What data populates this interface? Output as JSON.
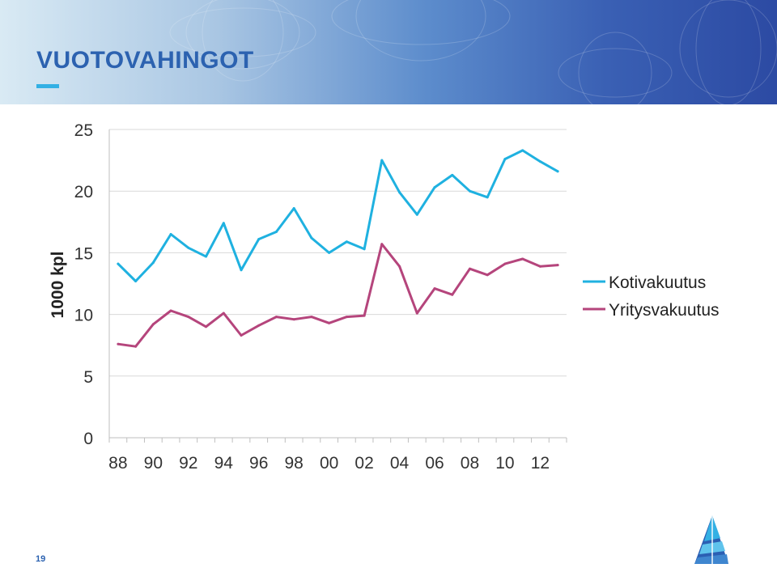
{
  "header": {
    "title": "VUOTOVAHINGOT"
  },
  "footer": {
    "page_number": "19"
  },
  "colors": {
    "kotivakuutus": "#1fb1e0",
    "yritysvakuutus": "#b5457c",
    "title": "#2c62b0"
  },
  "chart_data": {
    "type": "line",
    "title": "",
    "xlabel": "",
    "ylabel": "1000 kpl",
    "ylim": [
      0,
      25
    ],
    "yticks": [
      "0",
      "5",
      "10",
      "15",
      "20",
      "25"
    ],
    "x_tick_labels": [
      "88",
      "90",
      "92",
      "94",
      "96",
      "98",
      "00",
      "02",
      "04",
      "06",
      "08",
      "10",
      "12"
    ],
    "x": [
      1988,
      1989,
      1990,
      1991,
      1992,
      1993,
      1994,
      1995,
      1996,
      1997,
      1998,
      1999,
      2000,
      2001,
      2002,
      2003,
      2004,
      2005,
      2006,
      2007,
      2008,
      2009,
      2010,
      2011,
      2012,
      2013
    ],
    "legend_position": "right",
    "grid": "horizontal",
    "series": [
      {
        "name": "Kotivakuutus",
        "values": [
          14.1,
          12.7,
          14.2,
          16.5,
          15.4,
          14.7,
          17.4,
          13.6,
          16.1,
          16.7,
          18.6,
          16.2,
          15.0,
          15.9,
          15.3,
          22.5,
          19.9,
          18.1,
          20.3,
          21.3,
          20.0,
          19.5,
          22.6,
          23.3,
          22.4,
          21.6
        ]
      },
      {
        "name": "Yritysvakuutus",
        "values": [
          7.6,
          7.4,
          9.2,
          10.3,
          9.8,
          9.0,
          10.1,
          8.3,
          9.1,
          9.8,
          9.6,
          9.8,
          9.3,
          9.8,
          9.9,
          15.7,
          13.9,
          10.1,
          12.1,
          11.6,
          13.7,
          13.2,
          14.1,
          14.5,
          13.9,
          14.0
        ]
      }
    ]
  }
}
